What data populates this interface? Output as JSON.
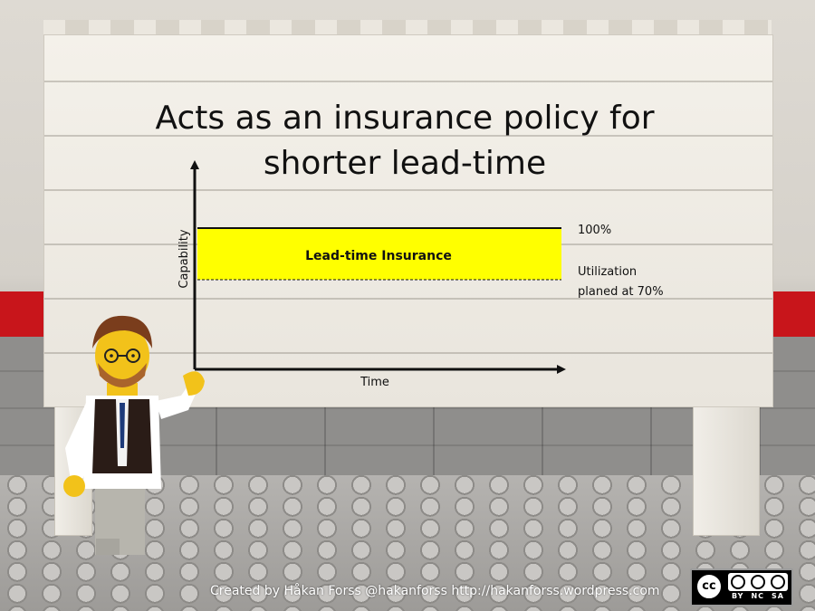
{
  "slide": {
    "title_line1": "Acts as an insurance policy for",
    "title_line2": "shorter lead-time"
  },
  "diagram": {
    "y_axis_label": "Capability",
    "x_axis_label": "Time",
    "band_label": "Lead-time Insurance",
    "upper_label": "100%",
    "lower_label_line1": "Utilization",
    "lower_label_line2": "planed at 70%",
    "band_color": "#ffff00",
    "axis_color": "#111111"
  },
  "footer": {
    "credit": "Created by Håkan Forss @hakanforss http://hakanforss.wordpress.com",
    "license_badge": {
      "cc": "cc",
      "by": "BY",
      "nc": "NC",
      "sa": "SA"
    }
  }
}
